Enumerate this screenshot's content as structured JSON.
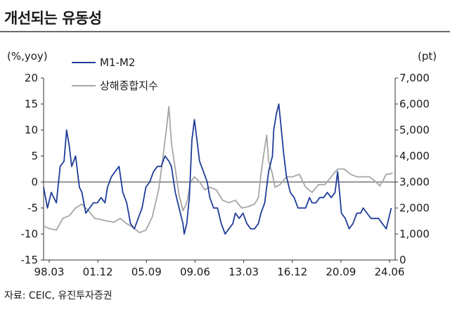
{
  "title": "개선되는 유동성",
  "source": "자료: CEIC, 유진투자증권",
  "chart_data": {
    "type": "line",
    "left_axis_unit": "(%,yoy)",
    "right_axis_unit": "(pt)",
    "ylim_left": [
      -15,
      20
    ],
    "ylim_right": [
      0,
      7000
    ],
    "yticks_left": [
      "20",
      "15",
      "10",
      "5",
      "0",
      "-5",
      "-10",
      "-15"
    ],
    "yticks_right": [
      "7,000",
      "6,000",
      "5,000",
      "4,000",
      "3,000",
      "2,000",
      "1,000",
      "0"
    ],
    "xticks": [
      "98.03",
      "01.12",
      "05.09",
      "09.06",
      "13.03",
      "16.12",
      "20.09",
      "24.06"
    ],
    "xlim": [
      1998.0,
      2025.5
    ],
    "grid": false,
    "legend_position": "top-left",
    "colors": {
      "m1m2": "#1f3d99",
      "shanghai": "#a6a6a6"
    },
    "series": [
      {
        "name": "M1-M2",
        "axis": "left",
        "x": [
          1998.0,
          1998.3,
          1998.6,
          1999.0,
          1999.3,
          1999.6,
          1999.8,
          2000.0,
          2000.2,
          2000.5,
          2000.8,
          2001.0,
          2001.3,
          2001.6,
          2001.9,
          2002.2,
          2002.5,
          2002.8,
          2003.0,
          2003.3,
          2003.6,
          2003.9,
          2004.2,
          2004.5,
          2004.8,
          2005.1,
          2005.4,
          2005.7,
          2006.0,
          2006.3,
          2006.6,
          2006.9,
          2007.2,
          2007.5,
          2007.8,
          2008.0,
          2008.3,
          2008.6,
          2008.9,
          2009.0,
          2009.2,
          2009.4,
          2009.6,
          2009.8,
          2010.0,
          2010.2,
          2010.5,
          2010.8,
          2011.0,
          2011.3,
          2011.6,
          2011.9,
          2012.2,
          2012.5,
          2012.8,
          2013.0,
          2013.3,
          2013.6,
          2013.9,
          2014.2,
          2014.5,
          2014.8,
          2015.0,
          2015.3,
          2015.6,
          2015.9,
          2016.0,
          2016.2,
          2016.4,
          2016.6,
          2016.8,
          2017.0,
          2017.3,
          2017.6,
          2017.9,
          2018.2,
          2018.5,
          2018.8,
          2019.0,
          2019.3,
          2019.6,
          2019.9,
          2020.2,
          2020.5,
          2020.8,
          2021.0,
          2021.3,
          2021.6,
          2021.9,
          2022.2,
          2022.5,
          2022.8,
          2023.0,
          2023.3,
          2023.6,
          2023.9,
          2024.2,
          2024.5,
          2024.8,
          2025.0,
          2025.2
        ],
        "y": [
          -1,
          -5,
          -2,
          -4,
          3,
          4,
          10,
          7,
          3,
          5,
          -1,
          -2,
          -6,
          -5,
          -4,
          -4,
          -3,
          -4,
          -1,
          1,
          2,
          3,
          -2,
          -4,
          -8,
          -9,
          -7,
          -5,
          -1,
          0,
          2,
          3,
          3,
          5,
          4,
          3,
          -2,
          -5,
          -8,
          -10,
          -8,
          -3,
          8,
          12,
          8,
          4,
          2,
          0,
          -3,
          -5,
          -5,
          -8,
          -10,
          -9,
          -8,
          -6,
          -7,
          -6,
          -8,
          -9,
          -9,
          -8,
          -6,
          -4,
          2,
          5,
          10,
          13,
          15,
          10,
          5,
          1,
          -2,
          -3,
          -5,
          -5,
          -5,
          -3,
          -4,
          -4,
          -3,
          -3,
          -2,
          -3,
          -2,
          2,
          -6,
          -7,
          -9,
          -8,
          -6,
          -6,
          -5,
          -6,
          -7,
          -7,
          -7,
          -8,
          -9,
          -7,
          -5
        ]
      },
      {
        "name": "상해종합지수",
        "axis": "right",
        "x": [
          1998.0,
          1998.5,
          1999.0,
          1999.5,
          2000.0,
          2000.5,
          2001.0,
          2001.5,
          2002.0,
          2002.5,
          2003.0,
          2003.5,
          2004.0,
          2004.5,
          2005.0,
          2005.5,
          2006.0,
          2006.5,
          2007.0,
          2007.3,
          2007.6,
          2007.8,
          2008.0,
          2008.3,
          2008.6,
          2008.9,
          2009.2,
          2009.5,
          2009.8,
          2010.2,
          2010.6,
          2011.0,
          2011.5,
          2012.0,
          2012.5,
          2013.0,
          2013.5,
          2014.0,
          2014.5,
          2014.8,
          2015.0,
          2015.2,
          2015.45,
          2015.6,
          2015.9,
          2016.1,
          2016.5,
          2017.0,
          2017.5,
          2018.0,
          2018.5,
          2019.0,
          2019.5,
          2020.0,
          2020.5,
          2021.0,
          2021.5,
          2022.0,
          2022.5,
          2023.0,
          2023.5,
          2024.0,
          2024.3,
          2024.6,
          2024.8,
          2025.0,
          2025.3
        ],
        "y": [
          1300,
          1200,
          1150,
          1600,
          1700,
          2000,
          2150,
          1900,
          1600,
          1550,
          1500,
          1450,
          1600,
          1400,
          1250,
          1050,
          1150,
          1650,
          2700,
          3800,
          5000,
          5900,
          4500,
          3500,
          2500,
          1900,
          2200,
          3000,
          3200,
          3000,
          2700,
          2800,
          2700,
          2300,
          2200,
          2300,
          2000,
          2050,
          2150,
          2400,
          3300,
          4000,
          4800,
          3800,
          3300,
          2800,
          2900,
          3200,
          3200,
          3300,
          2800,
          2600,
          2900,
          2900,
          3200,
          3500,
          3500,
          3300,
          3200,
          3200,
          3200,
          3000,
          2850,
          3100,
          3300,
          3300,
          3350
        ]
      }
    ]
  }
}
